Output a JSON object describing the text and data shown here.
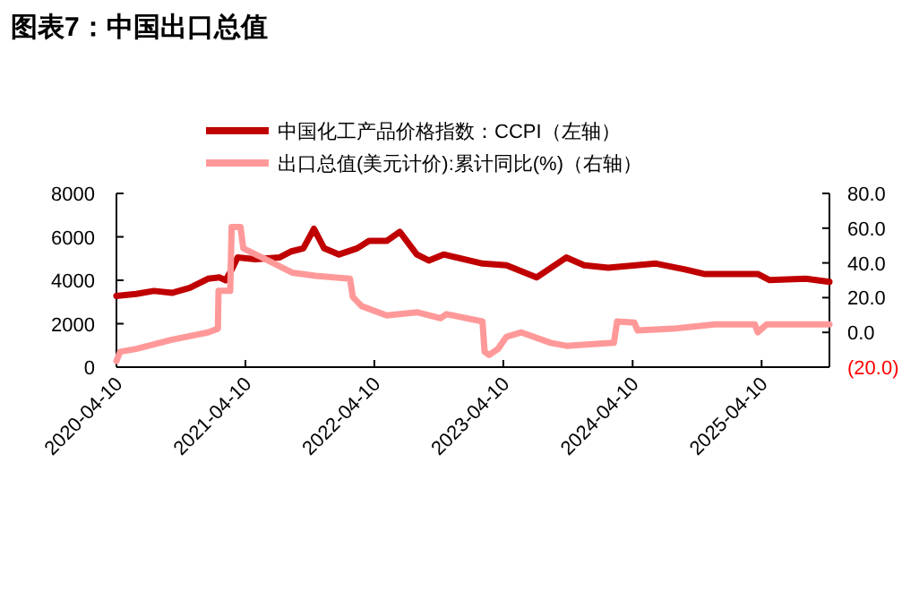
{
  "chart_data": {
    "type": "line",
    "title": "图表7：中国出口总值",
    "xlim": [
      "2020-04-10",
      "2025-10-19"
    ],
    "xticks": [
      "2020-04-10",
      "2021-04-10",
      "2022-04-10",
      "2023-04-10",
      "2024-04-10",
      "2025-04-10"
    ],
    "ylim": [
      0,
      8000
    ],
    "yticks": [
      0,
      2000,
      4000,
      6000,
      8000
    ],
    "y2lim": [
      -20,
      80
    ],
    "y2ticks": [
      {
        "value": -20,
        "label": "(20.0)"
      },
      {
        "value": 0,
        "label": "0.0"
      },
      {
        "value": 20,
        "label": "20.0"
      },
      {
        "value": 40,
        "label": "40.0"
      },
      {
        "value": 60,
        "label": "60.0"
      },
      {
        "value": 80,
        "label": "80.0"
      }
    ],
    "grid": false,
    "legend": "top",
    "series": [
      {
        "name": "中国化工产品价格指数：CCPI（左轴）",
        "color": "#c00000",
        "x": [
          "2020-04-10",
          "2020-06-05",
          "2020-07-25",
          "2020-09-14",
          "2020-11-04",
          "2020-12-25",
          "2021-01-27",
          "2021-02-13",
          "2021-03-02",
          "2021-03-19",
          "2021-05-08",
          "2021-07-15",
          "2021-08-18",
          "2021-09-21",
          "2021-10-21",
          "2021-11-19",
          "2021-12-31",
          "2022-02-20",
          "2022-03-26",
          "2022-05-15",
          "2022-06-21",
          "2022-08-08",
          "2022-09-11",
          "2022-10-23",
          "2023-02-10",
          "2023-04-19",
          "2023-07-13",
          "2023-10-05",
          "2023-11-25",
          "2024-02-01",
          "2024-06-15",
          "2024-09-08",
          "2024-10-29",
          "2025-03-30",
          "2025-05-03",
          "2025-08-13",
          "2025-10-19"
        ],
        "values": [
          3280,
          3370,
          3510,
          3420,
          3650,
          4070,
          4130,
          4000,
          4490,
          5050,
          4970,
          5050,
          5330,
          5470,
          6370,
          5470,
          5190,
          5470,
          5810,
          5810,
          6230,
          5190,
          4910,
          5190,
          4770,
          4690,
          4130,
          5050,
          4690,
          4580,
          4770,
          4490,
          4290,
          4290,
          4010,
          4070,
          3930
        ]
      },
      {
        "name": "出口总值(美元计价):累计同比(%)（右轴）",
        "color": "#ff9999",
        "axis": "y2",
        "x": [
          "2020-04-10",
          "2020-04-20",
          "2020-06-05",
          "2020-09-14",
          "2020-12-25",
          "2021-01-22",
          "2021-01-24",
          "2021-02-26",
          "2021-03-02",
          "2021-03-27",
          "2021-04-04",
          "2021-06-13",
          "2021-08-20",
          "2021-10-25",
          "2022-01-31",
          "2022-02-08",
          "2022-03-05",
          "2022-05-15",
          "2022-08-08",
          "2022-10-14",
          "2022-10-31",
          "2023-02-10",
          "2023-02-16",
          "2023-03-01",
          "2023-03-26",
          "2023-04-19",
          "2023-05-31",
          "2023-08-22",
          "2023-10-05",
          "2024-02-17",
          "2024-02-26",
          "2024-04-15",
          "2024-04-24",
          "2024-08-02",
          "2024-11-29",
          "2025-03-22",
          "2025-03-30",
          "2025-04-24",
          "2025-10-19"
        ],
        "values": [
          -16.5,
          -11.2,
          -9.5,
          -4.2,
          0.0,
          2.1,
          23.9,
          23.9,
          60.7,
          60.7,
          48.4,
          41.4,
          34.4,
          32.6,
          30.9,
          20.4,
          15.1,
          9.8,
          11.6,
          8.1,
          10.5,
          6.3,
          -11.2,
          -13.0,
          -9.5,
          -2.5,
          0.0,
          -6.0,
          -7.7,
          -6.0,
          6.3,
          5.6,
          1.1,
          2.1,
          4.6,
          4.6,
          0.0,
          4.6,
          4.6
        ]
      }
    ]
  }
}
